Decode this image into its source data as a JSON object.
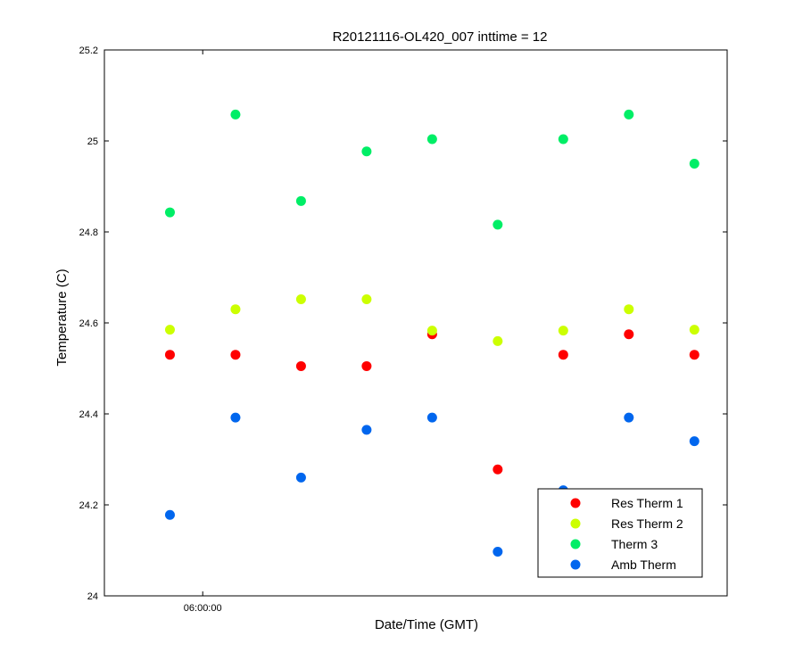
{
  "chart_data": {
    "type": "scatter",
    "title": "R20121116-OL420_007 inttime = 12",
    "xlabel": "Date/Time (GMT)",
    "ylabel": "Temperature (C)",
    "ylim": [
      24,
      25.2
    ],
    "yticks": [
      24,
      24.2,
      24.4,
      24.6,
      24.8,
      25,
      25.2
    ],
    "ytick_labels": [
      "24",
      "24.2",
      "24.4",
      "24.6",
      "24.8",
      "25",
      "25.2"
    ],
    "xlim": [
      0,
      9.5
    ],
    "x": [
      1,
      2,
      3,
      4,
      5,
      6,
      7,
      8,
      9
    ],
    "xticks": [
      {
        "x": 1.5,
        "label": "06:00:00"
      }
    ],
    "legend_position": "bottom-right",
    "grid": false,
    "series": [
      {
        "name": "Res Therm 1",
        "color": "#ff0000",
        "values": [
          24.53,
          24.53,
          24.505,
          24.505,
          24.575,
          24.278,
          24.53,
          24.575,
          24.53
        ]
      },
      {
        "name": "Res Therm 2",
        "color": "#ccff00",
        "values": [
          24.585,
          24.63,
          24.652,
          24.652,
          24.583,
          24.56,
          24.583,
          24.63,
          24.585
        ]
      },
      {
        "name": "Therm 3",
        "color": "#00ee66",
        "values": [
          24.843,
          25.058,
          24.868,
          24.977,
          25.004,
          24.816,
          25.004,
          25.058,
          24.95
        ]
      },
      {
        "name": "Amb Therm",
        "color": "#0066ee",
        "values": [
          24.178,
          24.392,
          24.26,
          24.365,
          24.392,
          24.097,
          24.232,
          24.392,
          24.34
        ]
      }
    ]
  }
}
